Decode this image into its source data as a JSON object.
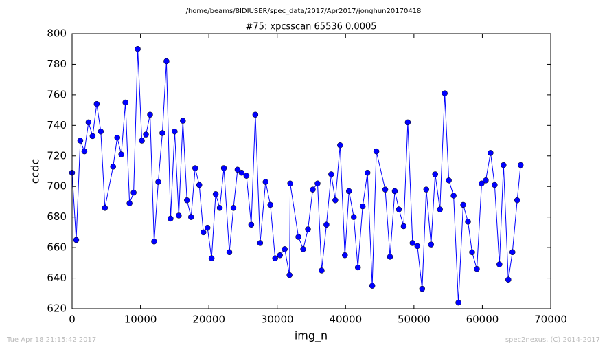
{
  "chart_data": {
    "type": "line",
    "suptitle": "/home/beams/8IDIUSER/spec_data/2017/Apr2017/jonghun20170418",
    "title": "#75: xpcsscan 65536 0.0005",
    "xlabel": "img_n",
    "ylabel": "ccdc",
    "x": [
      0,
      600,
      1200,
      1800,
      2400,
      3000,
      3600,
      4200,
      4800,
      6000,
      6600,
      7200,
      7800,
      8400,
      9000,
      9600,
      10200,
      10800,
      11400,
      12000,
      12600,
      13200,
      13800,
      14400,
      15000,
      15600,
      16200,
      16800,
      17400,
      18000,
      18600,
      19200,
      19800,
      20400,
      21000,
      21600,
      22200,
      23000,
      23600,
      24200,
      24800,
      25500,
      26200,
      26800,
      27500,
      28300,
      29000,
      29700,
      30400,
      31100,
      31800,
      31900,
      33100,
      33800,
      34500,
      35200,
      35900,
      36500,
      37200,
      37900,
      38500,
      39200,
      39900,
      40500,
      41200,
      41800,
      42500,
      43200,
      43900,
      44500,
      45800,
      46500,
      47200,
      47800,
      48500,
      49100,
      49800,
      50500,
      51200,
      51800,
      52500,
      53100,
      53800,
      54500,
      55100,
      55800,
      56500,
      57200,
      57900,
      58500,
      59200,
      59900,
      60500,
      61200,
      61800,
      62500,
      63100,
      63800,
      64400,
      65100,
      65600
    ],
    "series": [
      {
        "name": "ccdc",
        "color": "#0000ff",
        "values": [
          709,
          665,
          730,
          723,
          742,
          733,
          754,
          736,
          686,
          713,
          732,
          721,
          755,
          689,
          696,
          790,
          730,
          734,
          747,
          664,
          703,
          735,
          782,
          679,
          736,
          681,
          743,
          691,
          680,
          712,
          701,
          670,
          673,
          653,
          695,
          686,
          712,
          657,
          686,
          711,
          709,
          707,
          675,
          747,
          663,
          703,
          688,
          653,
          655,
          659,
          642,
          702,
          667,
          659,
          672,
          698,
          702,
          645,
          675,
          708,
          691,
          727,
          655,
          697,
          680,
          647,
          687,
          709,
          635,
          723,
          698,
          654,
          697,
          685,
          674,
          742,
          663,
          661,
          633,
          698,
          662,
          708,
          685,
          761,
          704,
          694,
          624,
          688,
          677,
          657,
          646,
          702,
          704,
          722,
          701,
          649,
          714,
          639,
          657,
          691,
          714
        ]
      }
    ],
    "xlim": [
      0,
      70000
    ],
    "xticks": [
      0,
      10000,
      20000,
      30000,
      40000,
      50000,
      60000,
      70000
    ],
    "ylim": [
      620,
      800
    ],
    "yticks": [
      620,
      640,
      660,
      680,
      700,
      720,
      740,
      760,
      780,
      800
    ]
  },
  "footer": {
    "left": "Tue Apr 18 21:15:42 2017",
    "right": "spec2nexus, (C) 2014-2017"
  }
}
